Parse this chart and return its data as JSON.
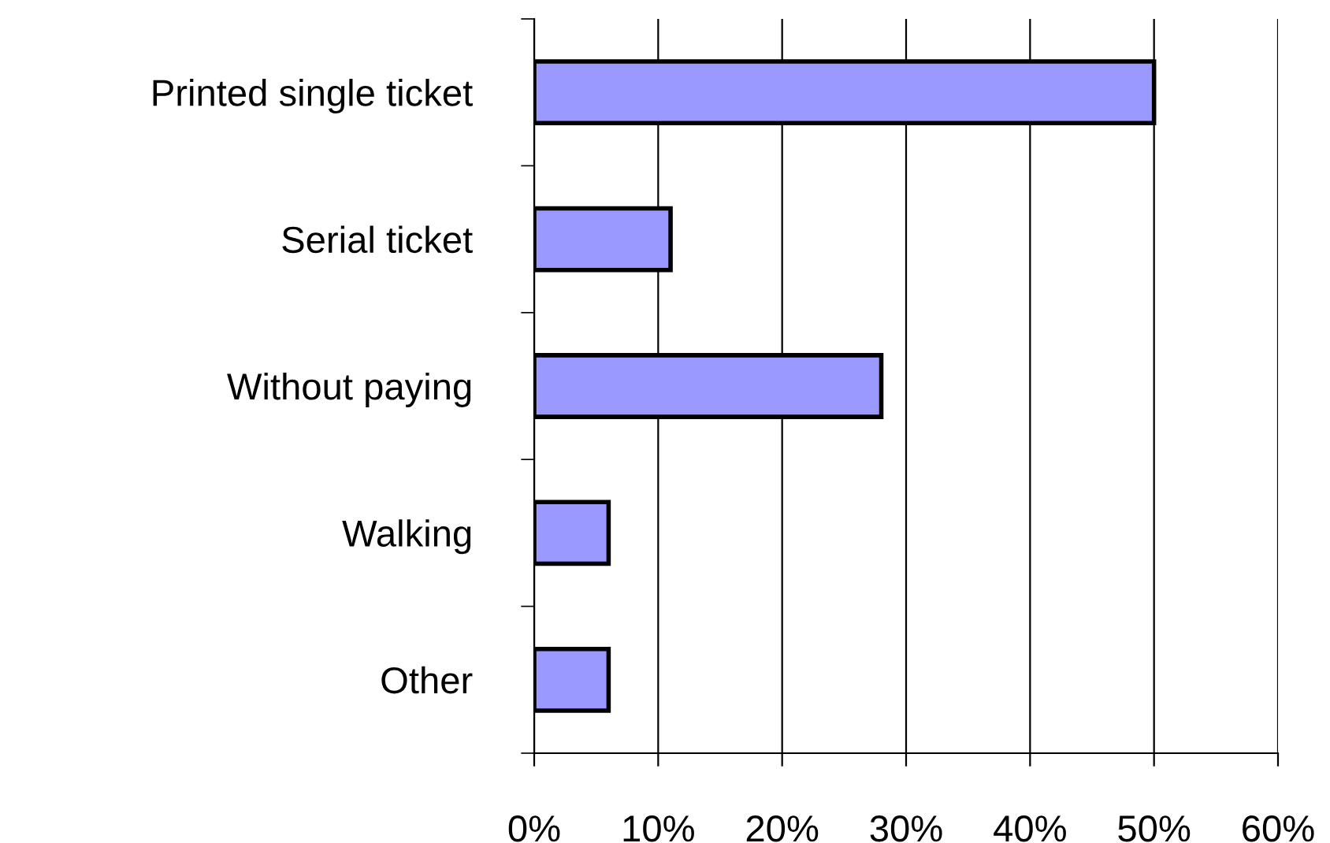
{
  "chart_data": {
    "type": "bar",
    "orientation": "horizontal",
    "categories": [
      "Printed single ticket",
      "Serial ticket",
      "Without paying",
      "Walking",
      "Other"
    ],
    "values": [
      50,
      11,
      28,
      6,
      6
    ],
    "color": "#9999ff",
    "xlim": [
      0,
      60
    ],
    "xticks": [
      {
        "value": 0,
        "label": "0%"
      },
      {
        "value": 10,
        "label": "10%"
      },
      {
        "value": 20,
        "label": "20%"
      },
      {
        "value": 30,
        "label": "30%"
      },
      {
        "value": 40,
        "label": "40%"
      },
      {
        "value": 50,
        "label": "50%"
      },
      {
        "value": 60,
        "label": "60%"
      }
    ],
    "grid": "x",
    "legend": false
  }
}
